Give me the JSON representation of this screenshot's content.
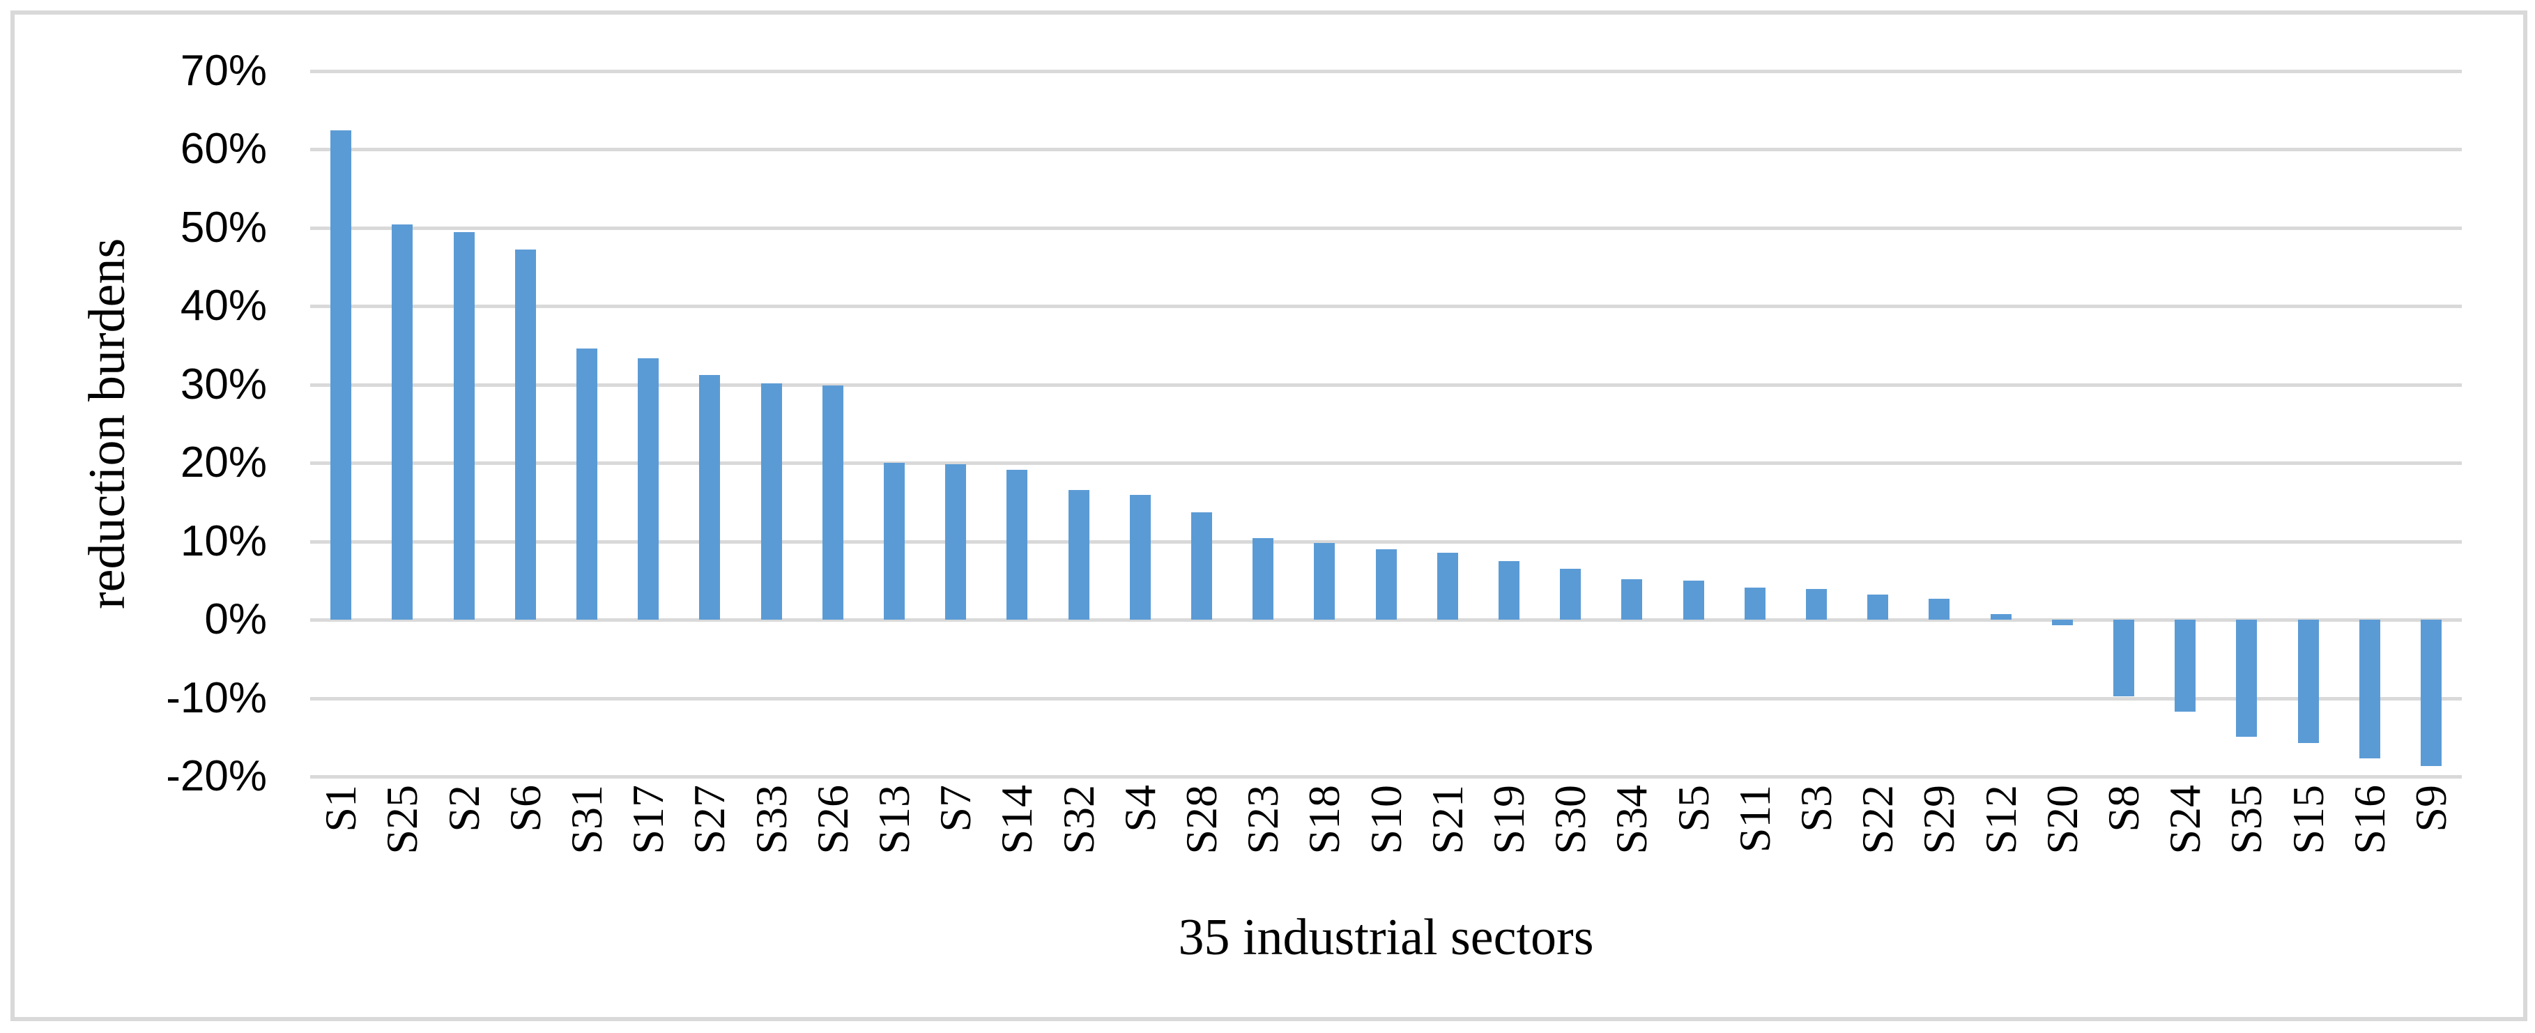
{
  "figure": {
    "y_axis_title": "reduction burdens",
    "x_axis_title": "35 industrial sectors",
    "y_ticks": [
      "70%",
      "60%",
      "50%",
      "40%",
      "30%",
      "20%",
      "10%",
      "0%",
      "-10%",
      "-20%"
    ],
    "colors": {
      "bar": "#5b9bd5",
      "gridline": "#d9d9d9",
      "frame": "#d9d9d9",
      "text": "#000000"
    }
  },
  "chart_data": {
    "type": "bar",
    "title": "",
    "xlabel": "35 industrial sectors",
    "ylabel": "reduction burdens",
    "categories": [
      "S1",
      "S25",
      "S2",
      "S6",
      "S31",
      "S17",
      "S27",
      "S33",
      "S26",
      "S13",
      "S7",
      "S14",
      "S32",
      "S4",
      "S28",
      "S23",
      "S18",
      "S10",
      "S21",
      "S19",
      "S30",
      "S34",
      "S5",
      "S11",
      "S3",
      "S22",
      "S29",
      "S12",
      "S20",
      "S8",
      "S24",
      "S35",
      "S15",
      "S16",
      "S9"
    ],
    "values": [
      62.4,
      50.4,
      49.4,
      47.2,
      34.6,
      33.3,
      31.2,
      30.1,
      29.9,
      20.0,
      19.8,
      19.1,
      16.5,
      15.9,
      13.7,
      10.4,
      9.8,
      9.0,
      8.5,
      7.5,
      6.5,
      5.2,
      5.0,
      4.1,
      3.9,
      3.2,
      2.7,
      0.7,
      -0.7,
      -9.8,
      -11.7,
      -14.9,
      -15.7,
      -17.7,
      -18.7
    ],
    "value_unit": "%",
    "ylim": [
      -20,
      70
    ],
    "y_tick_step": 10,
    "grid": true,
    "legend": false,
    "bar_sorted": "descending"
  }
}
